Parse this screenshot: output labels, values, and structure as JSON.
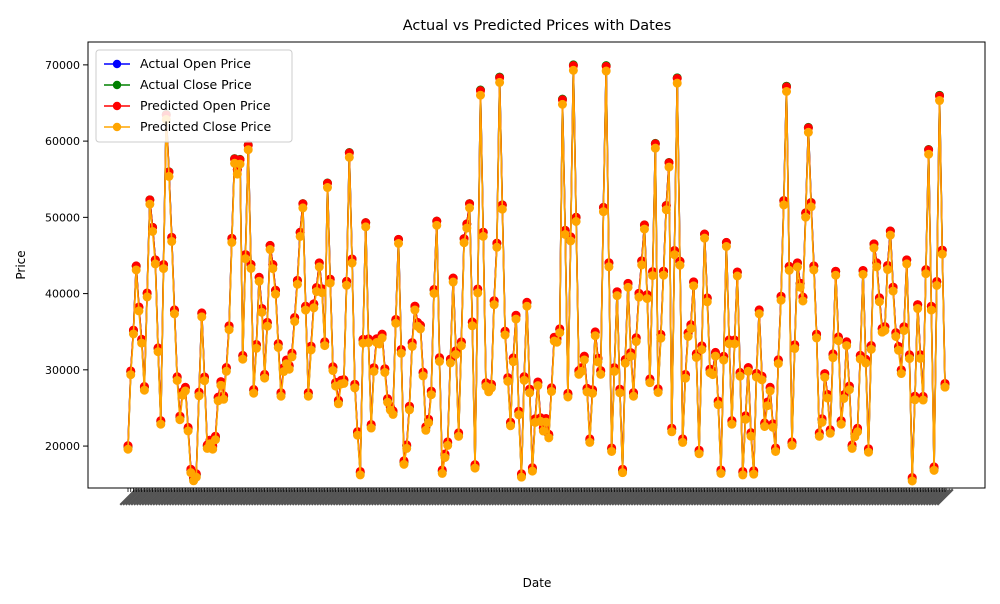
{
  "chart_data": {
    "type": "line",
    "title": "Actual vs Predicted Prices with Dates",
    "xlabel": "Date",
    "ylabel": "Price",
    "ylim": [
      14500,
      73000
    ],
    "yticks": [
      20000,
      30000,
      40000,
      50000,
      60000,
      70000
    ],
    "ytick_labels": [
      "20000",
      "30000",
      "40000",
      "50000",
      "60000",
      "70000"
    ],
    "grid": false,
    "legend_position": "upper-left",
    "n_points": 300,
    "x_tick_labels_illegible": true,
    "anchors": [
      [
        0,
        19900
      ],
      [
        3,
        43600
      ],
      [
        6,
        27700
      ],
      [
        8,
        52300
      ],
      [
        10,
        44400
      ],
      [
        12,
        23200
      ],
      [
        14,
        63500
      ],
      [
        17,
        37800
      ],
      [
        19,
        23800
      ],
      [
        21,
        27600
      ],
      [
        23,
        16800
      ],
      [
        25,
        16200
      ],
      [
        27,
        37400
      ],
      [
        29,
        20000
      ],
      [
        31,
        19900
      ],
      [
        33,
        26300
      ],
      [
        35,
        26500
      ],
      [
        37,
        35700
      ],
      [
        39,
        57700
      ],
      [
        41,
        57600
      ],
      [
        42,
        31800
      ],
      [
        44,
        59500
      ],
      [
        46,
        27300
      ],
      [
        48,
        42100
      ],
      [
        50,
        29300
      ],
      [
        52,
        46300
      ],
      [
        54,
        40400
      ],
      [
        56,
        26900
      ],
      [
        58,
        31200
      ],
      [
        60,
        32100
      ],
      [
        62,
        41700
      ],
      [
        64,
        51800
      ],
      [
        66,
        26900
      ],
      [
        68,
        38600
      ],
      [
        70,
        44000
      ],
      [
        72,
        33600
      ],
      [
        73,
        54500
      ],
      [
        75,
        30300
      ],
      [
        77,
        25900
      ],
      [
        79,
        28600
      ],
      [
        81,
        58500
      ],
      [
        83,
        28000
      ],
      [
        85,
        16500
      ],
      [
        87,
        49300
      ],
      [
        89,
        22700
      ],
      [
        91,
        34000
      ],
      [
        93,
        34600
      ],
      [
        95,
        26100
      ],
      [
        97,
        24500
      ],
      [
        99,
        47100
      ],
      [
        101,
        17900
      ],
      [
        103,
        25100
      ],
      [
        105,
        38300
      ],
      [
        107,
        35800
      ],
      [
        109,
        22400
      ],
      [
        111,
        27100
      ],
      [
        113,
        49500
      ],
      [
        115,
        16700
      ],
      [
        117,
        20400
      ],
      [
        119,
        42000
      ],
      [
        121,
        21600
      ],
      [
        123,
        47200
      ],
      [
        125,
        51800
      ],
      [
        127,
        17400
      ],
      [
        129,
        66700
      ],
      [
        131,
        28200
      ],
      [
        133,
        28000
      ],
      [
        135,
        46600
      ],
      [
        136,
        68400
      ],
      [
        138,
        35000
      ],
      [
        140,
        23000
      ],
      [
        142,
        37100
      ],
      [
        144,
        16200
      ],
      [
        146,
        38800
      ],
      [
        148,
        17000
      ],
      [
        150,
        28300
      ],
      [
        152,
        22300
      ],
      [
        154,
        21400
      ],
      [
        156,
        34200
      ],
      [
        158,
        35300
      ],
      [
        159,
        65500
      ],
      [
        161,
        26800
      ],
      [
        163,
        70000
      ],
      [
        165,
        29800
      ],
      [
        167,
        31700
      ],
      [
        169,
        20800
      ],
      [
        171,
        34900
      ],
      [
        173,
        29800
      ],
      [
        175,
        69900
      ],
      [
        177,
        19600
      ],
      [
        179,
        40200
      ],
      [
        181,
        16800
      ],
      [
        183,
        41300
      ],
      [
        185,
        26900
      ],
      [
        187,
        40000
      ],
      [
        189,
        49000
      ],
      [
        191,
        28700
      ],
      [
        193,
        59700
      ],
      [
        194,
        27400
      ],
      [
        196,
        42900
      ],
      [
        198,
        57200
      ],
      [
        199,
        22200
      ],
      [
        201,
        68300
      ],
      [
        203,
        20800
      ],
      [
        205,
        34800
      ],
      [
        207,
        41500
      ],
      [
        209,
        19300
      ],
      [
        211,
        47800
      ],
      [
        213,
        30000
      ],
      [
        215,
        32200
      ],
      [
        217,
        16700
      ],
      [
        219,
        46700
      ],
      [
        221,
        23200
      ],
      [
        223,
        42800
      ],
      [
        225,
        16500
      ],
      [
        227,
        30200
      ],
      [
        229,
        16600
      ],
      [
        231,
        37800
      ],
      [
        233,
        22900
      ],
      [
        235,
        27600
      ],
      [
        237,
        19600
      ],
      [
        239,
        39600
      ],
      [
        241,
        67200
      ],
      [
        243,
        20400
      ],
      [
        245,
        44000
      ],
      [
        247,
        39500
      ],
      [
        249,
        61800
      ],
      [
        251,
        43600
      ],
      [
        253,
        21600
      ],
      [
        255,
        29400
      ],
      [
        257,
        22000
      ],
      [
        259,
        42900
      ],
      [
        261,
        23200
      ],
      [
        263,
        33600
      ],
      [
        265,
        20000
      ],
      [
        267,
        22200
      ],
      [
        269,
        43000
      ],
      [
        271,
        19500
      ],
      [
        273,
        46500
      ],
      [
        275,
        39400
      ],
      [
        277,
        35600
      ],
      [
        279,
        48200
      ],
      [
        281,
        34800
      ],
      [
        283,
        29900
      ],
      [
        285,
        44400
      ],
      [
        287,
        15700
      ],
      [
        289,
        38500
      ],
      [
        291,
        26400
      ],
      [
        293,
        58900
      ],
      [
        295,
        17100
      ],
      [
        297,
        66000
      ],
      [
        299,
        28100
      ]
    ],
    "series": [
      {
        "name": "Actual Open Price",
        "color": "#0000ff",
        "offset": 0,
        "scale": 1,
        "draw_markers": false
      },
      {
        "name": "Actual Close Price",
        "color": "#008000",
        "offset": 0,
        "scale": 1,
        "draw_markers": true
      },
      {
        "name": "Predicted Open Price",
        "color": "#ff0000",
        "offset": 250,
        "scale": 0.995,
        "draw_markers": true
      },
      {
        "name": "Predicted Close Price",
        "color": "#ffa500",
        "offset": -150,
        "scale": 0.992,
        "draw_markers": true
      }
    ]
  }
}
